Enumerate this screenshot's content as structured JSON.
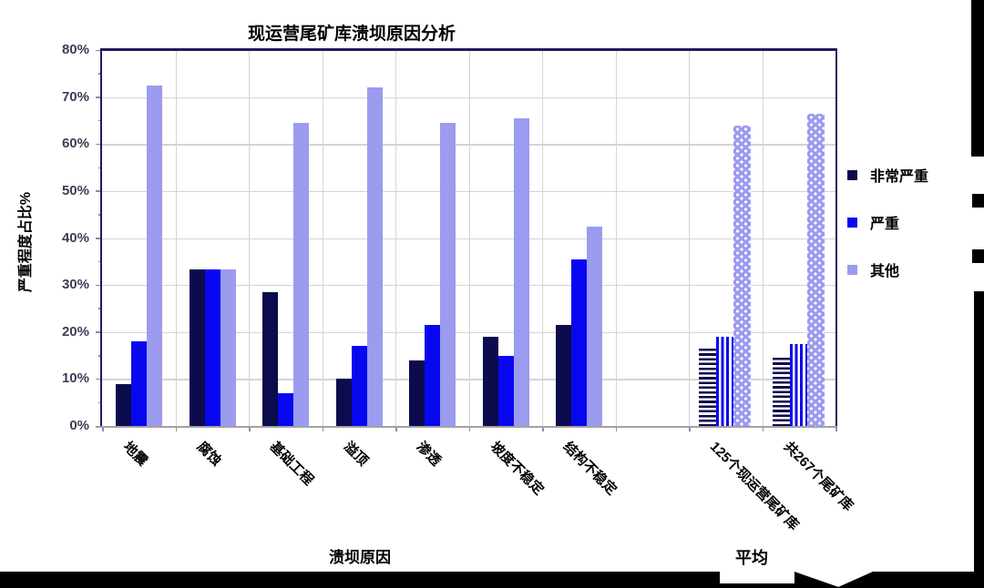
{
  "chart_data": {
    "type": "bar",
    "title": "现运营尾矿库溃坝原因分析",
    "ylabel": "严重程度占比%",
    "xlabel": "溃坝原因",
    "right_group_label": "平均",
    "ylim": [
      0,
      80
    ],
    "ytick_step": 10,
    "ytick_labels": [
      "0%",
      "10%",
      "20%",
      "30%",
      "40%",
      "50%",
      "60%",
      "70%",
      "80%"
    ],
    "grid": "horizontal-and-vertical",
    "legend_position": "right",
    "categories": [
      "地震",
      "腐蚀",
      "基础工程",
      "溢顶",
      "渗透",
      "坡度不稳定",
      "结构不稳定",
      "125个现运营尾矿库",
      "共267个尾矿库"
    ],
    "category_slots": [
      0,
      1,
      2,
      3,
      4,
      5,
      6,
      8,
      9
    ],
    "pattern_from_index": 7,
    "series": [
      {
        "name": "非常严重",
        "color": "#0b0b4d",
        "pattern": "pat-h",
        "values": [
          9,
          33.3,
          28.5,
          10,
          14,
          19,
          21.5,
          16.5,
          14.5
        ]
      },
      {
        "name": "严重",
        "color": "#0808f0",
        "pattern": "pat-v",
        "values": [
          18,
          33.3,
          7,
          17,
          21.5,
          15,
          35.5,
          19,
          17.5
        ]
      },
      {
        "name": "其他",
        "color": "#9b9bf0",
        "pattern": "pat-d",
        "values": [
          72.5,
          33.3,
          64.5,
          72,
          64.5,
          65.5,
          42.5,
          64,
          66.5
        ]
      }
    ],
    "colors": {
      "frame": "#1e1e5a",
      "gridline": "#d4d4d4",
      "axis_label": "#3d3d56"
    }
  }
}
